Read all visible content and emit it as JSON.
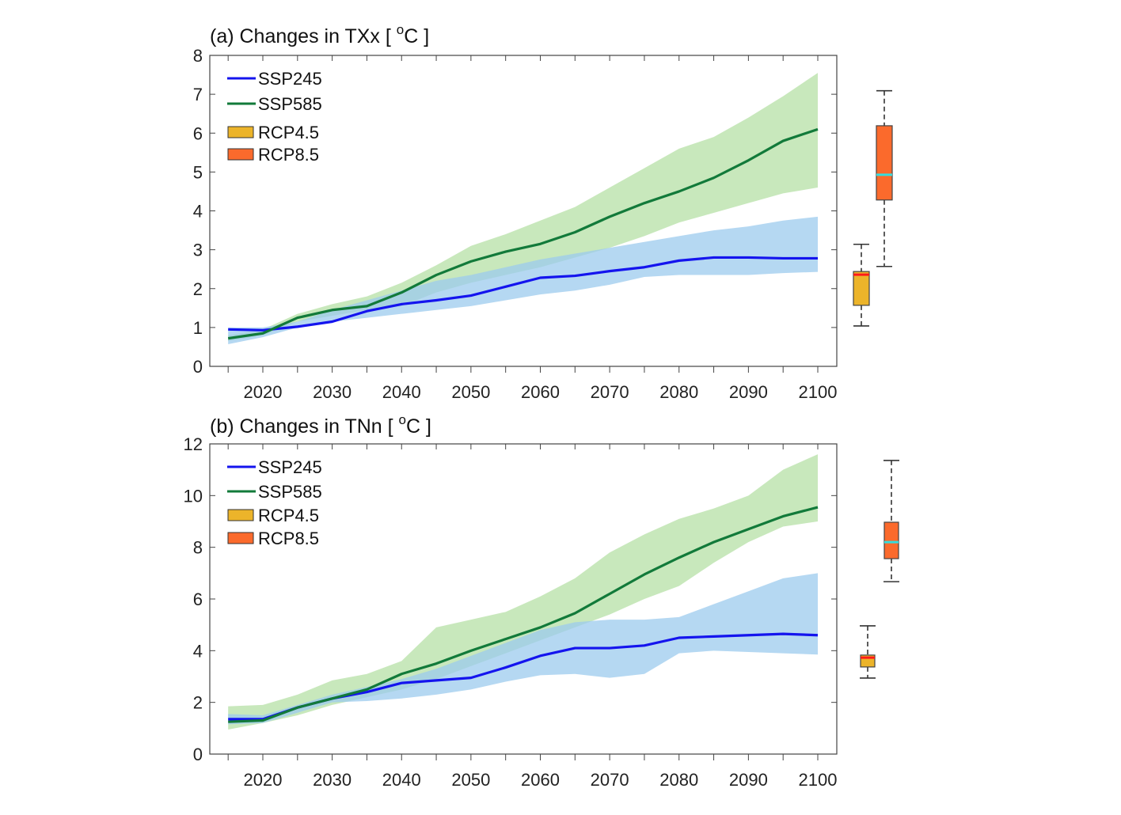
{
  "colors": {
    "SSP245_line": "#1414ee",
    "SSP245_band": "#9ccbee",
    "SSP585_line": "#127a3a",
    "SSP585_band": "#b5e0a6",
    "RCP4.5_box": "#ecb42a",
    "RCP8.5_box": "#fb6a2c",
    "median_RCP4.5": "#ff1a1a",
    "median_RCP8.5": "#33dddd"
  },
  "chart_data": [
    {
      "type": "line",
      "title_prefix": "(a) Changes in TXx [ ",
      "title_sup": "o",
      "title_suffix": "C ]",
      "xlim": [
        2014,
        2103
      ],
      "ylim": [
        0,
        8
      ],
      "xticks": [
        2020,
        2030,
        2040,
        2050,
        2060,
        2070,
        2080,
        2090,
        2100
      ],
      "yticks": [
        0,
        1,
        2,
        3,
        4,
        5,
        6,
        7,
        8
      ],
      "legend": [
        "SSP245",
        "SSP585",
        "RCP4.5",
        "RCP8.5"
      ],
      "legend_placement": "top-left",
      "x": [
        2015,
        2020,
        2025,
        2030,
        2035,
        2040,
        2045,
        2050,
        2055,
        2060,
        2065,
        2070,
        2075,
        2080,
        2085,
        2090,
        2095,
        2100
      ],
      "series": [
        {
          "name": "SSP245",
          "mean": [
            0.95,
            0.93,
            1.02,
            1.15,
            1.42,
            1.6,
            1.7,
            1.82,
            2.05,
            2.28,
            2.33,
            2.45,
            2.55,
            2.72,
            2.8,
            2.8,
            2.78,
            2.78
          ],
          "lower": [
            0.57,
            0.75,
            1.0,
            1.15,
            1.25,
            1.35,
            1.45,
            1.55,
            1.7,
            1.85,
            1.95,
            2.1,
            2.3,
            2.35,
            2.35,
            2.35,
            2.4,
            2.43
          ],
          "upper": [
            1.0,
            1.0,
            1.15,
            1.45,
            1.7,
            1.95,
            2.2,
            2.35,
            2.55,
            2.75,
            2.9,
            3.05,
            3.2,
            3.35,
            3.5,
            3.6,
            3.75,
            3.85
          ]
        },
        {
          "name": "SSP585",
          "mean": [
            0.72,
            0.85,
            1.25,
            1.45,
            1.55,
            1.9,
            2.35,
            2.7,
            2.95,
            3.15,
            3.45,
            3.85,
            4.2,
            4.5,
            4.85,
            5.3,
            5.8,
            6.1
          ],
          "lower": [
            0.65,
            0.8,
            1.15,
            1.3,
            1.45,
            1.55,
            1.9,
            2.15,
            2.35,
            2.55,
            2.8,
            3.05,
            3.35,
            3.7,
            3.95,
            4.2,
            4.45,
            4.6
          ],
          "upper": [
            0.8,
            0.95,
            1.35,
            1.6,
            1.8,
            2.15,
            2.6,
            3.1,
            3.4,
            3.75,
            4.1,
            4.6,
            5.1,
            5.6,
            5.9,
            6.4,
            6.95,
            7.55
          ]
        }
      ],
      "boxplots": [
        {
          "name": "RCP4.5",
          "whisker_low": 1.04,
          "q1": 1.57,
          "median": 2.36,
          "q3": 2.44,
          "whisker_high": 3.14
        },
        {
          "name": "RCP8.5",
          "whisker_low": 2.57,
          "q1": 4.28,
          "median": 4.93,
          "q3": 6.19,
          "whisker_high": 7.09
        }
      ]
    },
    {
      "type": "line",
      "title_prefix": "(b) Changes in TNn [ ",
      "title_sup": "o",
      "title_suffix": "C ]",
      "xlim": [
        2014,
        2103
      ],
      "ylim": [
        0,
        12
      ],
      "xticks": [
        2020,
        2030,
        2040,
        2050,
        2060,
        2070,
        2080,
        2090,
        2100
      ],
      "yticks": [
        0,
        2,
        4,
        6,
        8,
        10,
        12
      ],
      "legend": [
        "SSP245",
        "SSP585",
        "RCP4.5",
        "RCP8.5"
      ],
      "legend_placement": "top-left",
      "x": [
        2015,
        2020,
        2025,
        2030,
        2035,
        2040,
        2045,
        2050,
        2055,
        2060,
        2065,
        2070,
        2075,
        2080,
        2085,
        2090,
        2095,
        2100
      ],
      "series": [
        {
          "name": "SSP245",
          "mean": [
            1.35,
            1.35,
            1.8,
            2.15,
            2.4,
            2.75,
            2.85,
            2.95,
            3.35,
            3.8,
            4.1,
            4.1,
            4.2,
            4.5,
            4.55,
            4.6,
            4.65,
            4.6
          ],
          "lower": [
            1.15,
            1.2,
            1.6,
            2.0,
            2.05,
            2.15,
            2.3,
            2.5,
            2.8,
            3.05,
            3.1,
            2.95,
            3.1,
            3.9,
            4.0,
            3.95,
            3.9,
            3.85
          ],
          "upper": [
            1.55,
            1.5,
            1.9,
            2.3,
            2.6,
            2.9,
            3.3,
            3.8,
            4.3,
            4.8,
            5.1,
            5.2,
            5.2,
            5.3,
            5.8,
            6.3,
            6.8,
            7.0
          ]
        },
        {
          "name": "SSP585",
          "mean": [
            1.25,
            1.3,
            1.8,
            2.15,
            2.5,
            3.1,
            3.5,
            4.0,
            4.45,
            4.9,
            5.45,
            6.2,
            6.95,
            7.6,
            8.2,
            8.7,
            9.2,
            9.55
          ],
          "lower": [
            0.95,
            1.2,
            1.5,
            1.9,
            2.2,
            2.5,
            2.9,
            3.4,
            3.9,
            4.4,
            4.9,
            5.4,
            6.0,
            6.5,
            7.4,
            8.2,
            8.8,
            9.0
          ],
          "upper": [
            1.85,
            1.9,
            2.3,
            2.85,
            3.1,
            3.6,
            4.9,
            5.2,
            5.5,
            6.1,
            6.8,
            7.8,
            8.5,
            9.1,
            9.5,
            10.0,
            11.0,
            11.6
          ]
        }
      ],
      "boxplots": [
        {
          "name": "RCP4.5",
          "whisker_low": 2.94,
          "q1": 3.37,
          "median": 3.73,
          "q3": 3.83,
          "whisker_high": 4.96
        },
        {
          "name": "RCP8.5",
          "whisker_low": 6.67,
          "q1": 7.56,
          "median": 8.2,
          "q3": 8.97,
          "whisker_high": 11.36
        }
      ]
    }
  ]
}
